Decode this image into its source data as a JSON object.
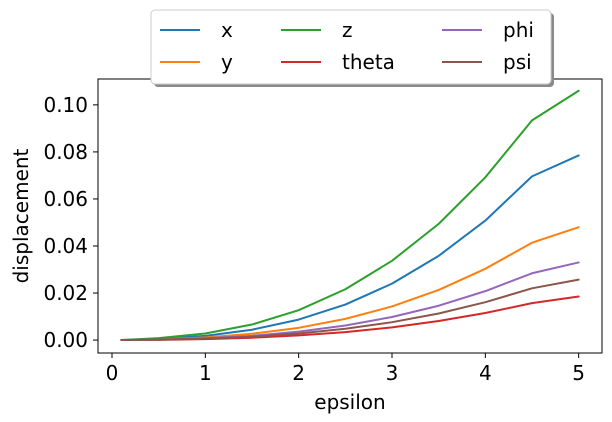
{
  "chart_data": {
    "type": "line",
    "title": "",
    "xlabel": "epsilon",
    "ylabel": "displacement",
    "xlim": [
      -0.15,
      5.25
    ],
    "ylim": [
      -0.0055,
      0.111
    ],
    "xticks": [
      0,
      1,
      2,
      3,
      4,
      5
    ],
    "xtick_labels": [
      "0",
      "1",
      "2",
      "3",
      "4",
      "5"
    ],
    "yticks": [
      0.0,
      0.02,
      0.04,
      0.06,
      0.08,
      0.1
    ],
    "ytick_labels": [
      "0.00",
      "0.02",
      "0.04",
      "0.06",
      "0.08",
      "0.10"
    ],
    "grid": false,
    "legend_placement": "top-center",
    "x": [
      0.1,
      0.5,
      1.0,
      1.5,
      2.0,
      2.5,
      3.0,
      3.5,
      4.0,
      4.5,
      5.0
    ],
    "series": [
      {
        "name": "x",
        "color": "#1f77b4",
        "values": [
          0.0,
          0.0005,
          0.0018,
          0.0044,
          0.0087,
          0.0151,
          0.024,
          0.0358,
          0.0508,
          0.0696,
          0.0785
        ]
      },
      {
        "name": "y",
        "color": "#ff7f0e",
        "values": [
          0.0,
          0.0003,
          0.0011,
          0.0027,
          0.0052,
          0.009,
          0.0143,
          0.0213,
          0.0303,
          0.0414,
          0.048
        ]
      },
      {
        "name": "z",
        "color": "#2ca02c",
        "values": [
          0.0,
          0.0008,
          0.0028,
          0.0066,
          0.0127,
          0.0216,
          0.0337,
          0.0494,
          0.0692,
          0.0934,
          0.106
        ]
      },
      {
        "name": "theta",
        "color": "#d62728",
        "values": [
          0.0,
          0.0001,
          0.0004,
          0.001,
          0.002,
          0.0034,
          0.0054,
          0.0081,
          0.0115,
          0.0157,
          0.0185
        ]
      },
      {
        "name": "phi",
        "color": "#9467bd",
        "values": [
          0.0,
          0.0002,
          0.0008,
          0.0018,
          0.0036,
          0.0062,
          0.0098,
          0.0146,
          0.0208,
          0.0284,
          0.033
        ]
      },
      {
        "name": "psi",
        "color": "#8c564b",
        "values": [
          0.0,
          0.0002,
          0.0006,
          0.0014,
          0.0028,
          0.0048,
          0.0076,
          0.0113,
          0.0161,
          0.022,
          0.0257
        ]
      }
    ]
  }
}
